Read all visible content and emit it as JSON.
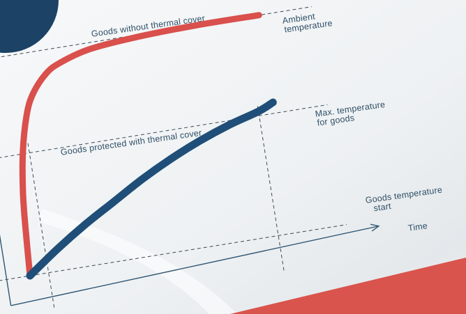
{
  "colors": {
    "background": "#e6e9ec",
    "paper": "#f5f7f8",
    "uncovered_line": "#d9504c",
    "covered_line": "#1f4e78",
    "axis": "#2f5673",
    "dashed": "#3a4a55",
    "corner_blob": "#1c4266",
    "bottom_band": "#d9544c",
    "label_text": "#2f4f66"
  },
  "labels": {
    "ambient_line1": "Ambient",
    "ambient_line2": "temperature",
    "goods_without_cover": "Goods without thermal cover",
    "max_temp_line1": "Max. temperature",
    "max_temp_line2": "for goods",
    "goods_protected": "Goods protected with thermal cover",
    "goods_temp_start_line1": "Goods temperature",
    "goods_temp_start_line2": "start",
    "time_axis": "Time"
  },
  "chart_data": {
    "type": "line",
    "xlabel": "Time",
    "ylabel": "",
    "xlim": [
      0,
      100
    ],
    "ylim": [
      0,
      100
    ],
    "reference_levels": [
      {
        "name": "Ambient temperature",
        "y": 100
      },
      {
        "name": "Max. temperature for goods",
        "y": 55
      },
      {
        "name": "Goods temperature start",
        "y": 0
      }
    ],
    "series": [
      {
        "name": "Goods without thermal cover",
        "x": [
          0,
          1,
          2,
          4,
          7,
          10,
          15,
          20,
          30,
          45,
          65,
          85
        ],
        "y": [
          0,
          22,
          38,
          56,
          72,
          81,
          89,
          93,
          97,
          99,
          100,
          100
        ]
      },
      {
        "name": "Goods protected with thermal cover",
        "x": [
          0,
          10,
          20,
          30,
          40,
          50,
          60,
          70,
          80,
          85
        ],
        "y": [
          0,
          10,
          19,
          27,
          35,
          42,
          48,
          53,
          57,
          60
        ]
      }
    ]
  }
}
